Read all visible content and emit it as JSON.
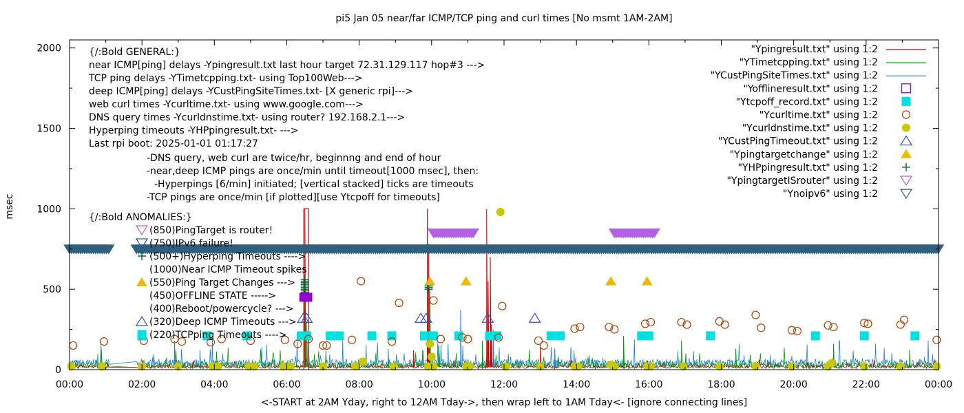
{
  "chart_data": {
    "type": "line",
    "title": "pi5 Jan 05  near/far ICMP/TCP ping and curl times [No msmt 1AM-2AM]",
    "xlabel": "<-START at 2AM Yday, right to 12AM Tday->, then wrap left to 1AM Tday<- [ignore connecting lines]",
    "ylabel": "msec",
    "xlim": [
      0,
      24
    ],
    "ylim": [
      0,
      2050
    ],
    "x_ticks": [
      {
        "v": 0,
        "label": "00:00"
      },
      {
        "v": 2,
        "label": "02:00"
      },
      {
        "v": 4,
        "label": "04:00"
      },
      {
        "v": 6,
        "label": "06:00"
      },
      {
        "v": 8,
        "label": "08:00"
      },
      {
        "v": 10,
        "label": "10:00"
      },
      {
        "v": 12,
        "label": "12:00"
      },
      {
        "v": 14,
        "label": "14:00"
      },
      {
        "v": 16,
        "label": "16:00"
      },
      {
        "v": 18,
        "label": "18:00"
      },
      {
        "v": 20,
        "label": "20:00"
      },
      {
        "v": 22,
        "label": "22:00"
      },
      {
        "v": 24,
        "label": "00:00"
      }
    ],
    "y_ticks": [
      {
        "v": 0,
        "label": "0"
      },
      {
        "v": 500,
        "label": "500"
      },
      {
        "v": 1000,
        "label": "1000"
      },
      {
        "v": 1500,
        "label": "1500"
      },
      {
        "v": 2000,
        "label": "2000"
      }
    ],
    "grid": false,
    "legend_position": "top-right",
    "legend": [
      {
        "label": "\"Ypingresult.txt\" using 1:2",
        "kind": "line",
        "color": "#cc0000"
      },
      {
        "label": "\"YTimetcpping.txt\" using 1:2",
        "kind": "line",
        "color": "#009e00"
      },
      {
        "label": "\"YCustPingSiteTimes.txt\" using 1:2",
        "kind": "line",
        "color": "#1f7fd0"
      },
      {
        "label": "\"Yofflineresult.txt\" using 1:2",
        "kind": "open-square",
        "color": "#9400d3"
      },
      {
        "label": "\"Ytcpoff_record.txt\" using 1:2",
        "kind": "filled-square",
        "color": "#00e0e0"
      },
      {
        "label": "\"Ycurltime.txt\" using 1:2",
        "kind": "open-circle",
        "color": "#b04000"
      },
      {
        "label": "\"Ycurldnstime.txt\" using 1:2",
        "kind": "filled-circle",
        "color": "#c8c800"
      },
      {
        "label": "\"YCustPingTimeout.txt\" using 1:2",
        "kind": "open-triangle-up",
        "color": "#3050d0"
      },
      {
        "label": "\"Ypingtargetchange\" using 1:2",
        "kind": "filled-triangle-up",
        "color": "#f0b800"
      },
      {
        "label": "\"YHPpingresult.txt\" using 1:2",
        "kind": "plus",
        "color": "#006837"
      },
      {
        "label": "\"YpingtargetISrouter\" using 1:2",
        "kind": "open-triangle-down",
        "color": "#b060e0"
      },
      {
        "label": "\"Ynoipv6\" using 1:2",
        "kind": "open-triangle-down",
        "color": "#2f5f7f"
      }
    ],
    "annotations_general": [
      "{/:Bold GENERAL:}",
      "near ICMP[ping] delays -Ypingresult.txt last hour target 72.31.129.117 hop#3 --->",
      "TCP ping delays -YTimetcpping.txt- using Top100Web--->",
      "deep ICMP[ping] delays -YCustPingSiteTimes.txt- [X generic rpi]--->",
      "web curl times -Ycurltime.txt- using www.google.com--->",
      "DNS query times -Ycurldnstime.txt- using router? 192.168.2.1--->",
      "Hyperping timeouts -YHPpingresult.txt- --->",
      "Last rpi boot: 2025-01-01 01:17:27"
    ],
    "annotations_notes": [
      "-DNS query, web curl are twice/hr, beginnng and end of hour",
      "-near,deep ICMP pings are once/min until timeout[1000 msec], then:",
      "-Hyperpings [6/min] initiated; [vertical stacked] ticks are timeouts",
      "-TCP pings are once/min [if plotted][use Ytcpoff for timeouts]"
    ],
    "annotations_anomalies_header": "{/:Bold ANOMALIES:}",
    "annotations_anomalies": [
      {
        "label": "(850)PingTarget is router!",
        "kind": "open-triangle-down",
        "color": "#b060e0"
      },
      {
        "label": "(750)IPv6 failure!",
        "kind": "open-triangle-down",
        "color": "#2f5f7f"
      },
      {
        "label": "(500+)Hyperping Timeouts ---->",
        "kind": "plus",
        "color": "#006837"
      },
      {
        "label": "(1000)Near ICMP Timeout spikes",
        "kind": "none",
        "color": "#cc0000"
      },
      {
        "label": "(550)Ping Target Changes --->",
        "kind": "filled-triangle-up",
        "color": "#f0b800"
      },
      {
        "label": "(450)OFFLINE STATE ----->",
        "kind": "none",
        "color": "#9400d3"
      },
      {
        "label": "(400)Reboot/powercycle? --->",
        "kind": "none",
        "color": "#000000"
      },
      {
        "label": "(320)Deep ICMP Timeouts --->",
        "kind": "open-triangle-up",
        "color": "#3050d0"
      },
      {
        "label": "(220)TCPping Timeouts ---->",
        "kind": "filled-square",
        "color": "#00e0e0"
      }
    ],
    "series_ping_spikes": {
      "name": "\"Ypingresult.txt\" using 1:2",
      "points": [
        [
          6.5,
          1000
        ],
        [
          9.88,
          1000
        ],
        [
          9.92,
          780
        ],
        [
          11.52,
          1000
        ],
        [
          11.56,
          550
        ],
        [
          11.62,
          700
        ],
        [
          11.65,
          280
        ],
        [
          13.0,
          150
        ],
        [
          9.5,
          120
        ]
      ]
    },
    "series_tcp_spikes": {
      "name": "\"YTimetcpping.txt\" using 1:2",
      "points": [
        [
          6.48,
          450
        ],
        [
          6.55,
          300
        ],
        [
          9.95,
          500
        ],
        [
          10.2,
          150
        ],
        [
          11.4,
          180
        ],
        [
          15.3,
          210
        ],
        [
          16.9,
          180
        ],
        [
          18.4,
          130
        ],
        [
          21.1,
          160
        ],
        [
          23.2,
          120
        ]
      ]
    },
    "series_custping_spikes": {
      "name": "\"YCustPingSiteTimes.txt\" using 1:2",
      "points": [
        [
          2.9,
          180
        ],
        [
          6.6,
          200
        ],
        [
          10.8,
          370
        ],
        [
          11.7,
          250
        ],
        [
          13.4,
          130
        ],
        [
          3.6,
          120
        ],
        [
          8.8,
          130
        ]
      ]
    },
    "offline_points": [
      [
        6.47,
        450
      ],
      [
        6.58,
        450
      ]
    ],
    "tcpoff_points": [
      [
        2.0,
        210
      ],
      [
        3.8,
        210
      ],
      [
        4.9,
        210
      ],
      [
        6.4,
        210
      ],
      [
        6.55,
        210
      ],
      [
        7.2,
        210
      ],
      [
        7.45,
        210
      ],
      [
        8.35,
        210
      ],
      [
        8.9,
        210
      ],
      [
        9.8,
        210
      ],
      [
        10.05,
        210
      ],
      [
        10.75,
        210
      ],
      [
        11.6,
        210
      ],
      [
        11.8,
        210
      ],
      [
        13.3,
        210
      ],
      [
        13.55,
        210
      ],
      [
        15.8,
        210
      ],
      [
        16.0,
        210
      ],
      [
        17.7,
        210
      ],
      [
        20.6,
        210
      ],
      [
        21.95,
        210
      ],
      [
        23.35,
        210
      ]
    ],
    "curl_points": [
      [
        0.1,
        150
      ],
      [
        0.95,
        175
      ],
      [
        2.05,
        180
      ],
      [
        2.9,
        190
      ],
      [
        3.1,
        175
      ],
      [
        3.9,
        170
      ],
      [
        4.2,
        190
      ],
      [
        5.0,
        180
      ],
      [
        5.95,
        185
      ],
      [
        6.3,
        160
      ],
      [
        6.6,
        190
      ],
      [
        7.0,
        150
      ],
      [
        7.1,
        150
      ],
      [
        7.8,
        185
      ],
      [
        8.05,
        550
      ],
      [
        8.9,
        175
      ],
      [
        9.1,
        415
      ],
      [
        10.05,
        430
      ],
      [
        10.25,
        190
      ],
      [
        10.85,
        200
      ],
      [
        11.0,
        190
      ],
      [
        11.85,
        200
      ],
      [
        11.95,
        395
      ],
      [
        12.95,
        180
      ],
      [
        13.1,
        150
      ],
      [
        13.95,
        255
      ],
      [
        14.1,
        265
      ],
      [
        14.9,
        265
      ],
      [
        15.05,
        250
      ],
      [
        15.9,
        285
      ],
      [
        16.05,
        295
      ],
      [
        16.9,
        295
      ],
      [
        17.05,
        280
      ],
      [
        17.95,
        300
      ],
      [
        18.1,
        280
      ],
      [
        18.95,
        340
      ],
      [
        19.1,
        260
      ],
      [
        19.95,
        245
      ],
      [
        20.1,
        240
      ],
      [
        20.95,
        275
      ],
      [
        21.1,
        265
      ],
      [
        21.95,
        290
      ],
      [
        22.05,
        285
      ],
      [
        22.95,
        280
      ],
      [
        23.05,
        310
      ],
      [
        23.95,
        185
      ]
    ],
    "dns_points": [
      [
        0.05,
        20
      ],
      [
        0.9,
        20
      ],
      [
        2.0,
        20
      ],
      [
        3.0,
        20
      ],
      [
        3.95,
        20
      ],
      [
        4.1,
        20
      ],
      [
        4.95,
        20
      ],
      [
        5.1,
        20
      ],
      [
        5.9,
        20
      ],
      [
        6.1,
        20
      ],
      [
        7.0,
        20
      ],
      [
        7.9,
        20
      ],
      [
        8.1,
        50
      ],
      [
        8.95,
        20
      ],
      [
        9.9,
        20
      ],
      [
        9.95,
        160
      ],
      [
        10.0,
        80
      ],
      [
        10.05,
        20
      ],
      [
        10.95,
        20
      ],
      [
        11.05,
        20
      ],
      [
        11.9,
        980
      ],
      [
        12.05,
        20
      ],
      [
        13.0,
        20
      ],
      [
        13.95,
        20
      ],
      [
        14.05,
        20
      ],
      [
        14.95,
        30
      ],
      [
        15.05,
        20
      ],
      [
        15.95,
        20
      ],
      [
        16.05,
        20
      ],
      [
        16.95,
        20
      ],
      [
        17.95,
        20
      ],
      [
        18.95,
        20
      ],
      [
        19.95,
        20
      ],
      [
        20.95,
        20
      ],
      [
        21.05,
        40
      ],
      [
        21.95,
        20
      ],
      [
        22.95,
        20
      ],
      [
        23.95,
        20
      ]
    ],
    "custtimeout_points": [
      [
        6.45,
        320
      ],
      [
        6.55,
        320
      ],
      [
        9.7,
        320
      ],
      [
        9.85,
        320
      ],
      [
        11.55,
        320
      ],
      [
        12.85,
        320
      ]
    ],
    "targetchange_points": [
      [
        9.95,
        550
      ],
      [
        10.95,
        550
      ],
      [
        14.95,
        550
      ],
      [
        15.95,
        550
      ]
    ],
    "hyperping_x": [
      6.5,
      9.92
    ],
    "router_segments": [
      [
        9.95,
        11.2
      ],
      [
        14.95,
        16.2
      ]
    ],
    "noipv6_segment": [
      0.0,
      24.0
    ],
    "noipv6_gaps": [
      [
        1.1,
        1.85
      ]
    ],
    "noipv6_level": 750,
    "router_level": 850,
    "offline_rect": [
      6.47,
      6.6,
      1000
    ]
  }
}
